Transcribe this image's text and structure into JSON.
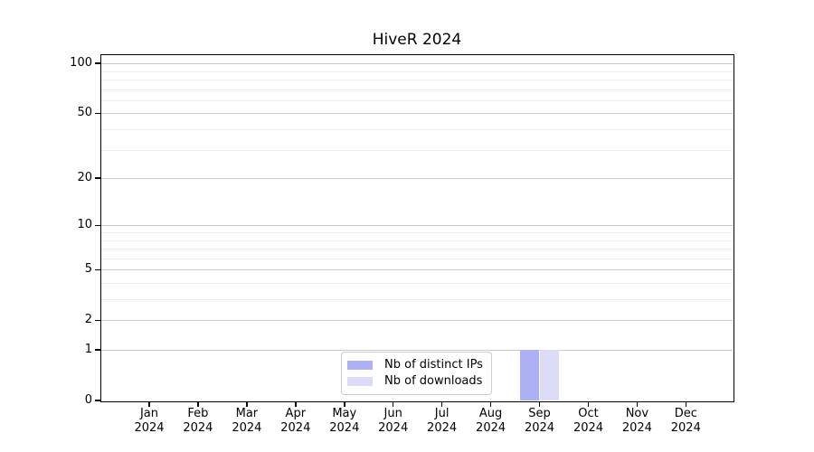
{
  "chart_data": {
    "type": "bar",
    "title": "HiveR 2024",
    "categories": [
      "Jan",
      "Feb",
      "Mar",
      "Apr",
      "May",
      "Jun",
      "Jul",
      "Aug",
      "Sep",
      "Oct",
      "Nov",
      "Dec"
    ],
    "category_year": "2024",
    "series": [
      {
        "name": "Nb of distinct IPs",
        "color": "#aeb0f5",
        "values": [
          0,
          0,
          0,
          0,
          0,
          0,
          0,
          0,
          1,
          0,
          0,
          0
        ]
      },
      {
        "name": "Nb of downloads",
        "color": "#dcdcf8",
        "values": [
          0,
          0,
          0,
          0,
          0,
          0,
          0,
          0,
          1,
          0,
          0,
          0
        ]
      }
    ],
    "yscale": "log1p",
    "ylim": [
      0,
      112
    ],
    "y_major_ticks": [
      0,
      1,
      2,
      5,
      10,
      20,
      50,
      100
    ],
    "y_minor_gridlines": [
      3,
      4,
      6,
      7,
      8,
      9,
      30,
      40,
      60,
      70,
      80,
      90
    ],
    "xlabel": "",
    "ylabel": "",
    "grid": "horizontal",
    "legend_position": "inside-bottom-center",
    "colors": {
      "major_grid": "#c8c8c8",
      "minor_grid": "#eeeeee",
      "spine": "#000000",
      "text": "#000000",
      "background": "#ffffff"
    }
  }
}
